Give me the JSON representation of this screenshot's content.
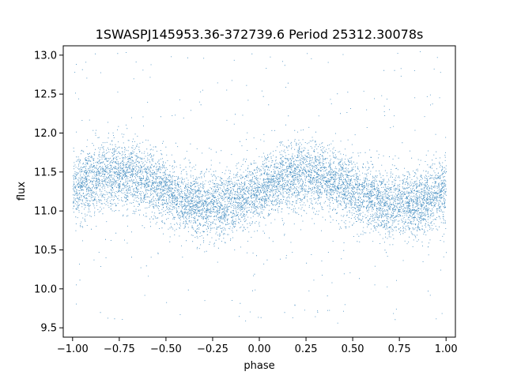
{
  "chart_data": {
    "type": "scatter",
    "title": "1SWASPJ145953.36-372739.6 Period 25312.30078s",
    "xlabel": "phase",
    "ylabel": "flux",
    "xlim": [
      -1.05,
      1.05
    ],
    "ylim": [
      9.38,
      13.12
    ],
    "xticks": [
      -1.0,
      -0.75,
      -0.5,
      -0.25,
      0.0,
      0.25,
      0.5,
      0.75,
      1.0
    ],
    "xtick_labels": [
      "−1.00",
      "−0.75",
      "−0.50",
      "−0.25",
      "0.00",
      "0.25",
      "0.50",
      "0.75",
      "1.00"
    ],
    "yticks": [
      9.5,
      10.0,
      10.5,
      11.0,
      11.5,
      12.0,
      12.5,
      13.0
    ],
    "ytick_labels": [
      "9.5",
      "10.0",
      "10.5",
      "11.0",
      "11.5",
      "12.0",
      "12.5",
      "13.0"
    ],
    "grid": false,
    "series": [
      {
        "color": "#1f77b4",
        "x_range": [
          -1.0,
          1.0
        ],
        "y_range": [
          9.55,
          13.05
        ],
        "model": {
          "mean_flux": 11.27,
          "amplitude": 0.2,
          "peak_phases": [
            -0.75,
            0.25
          ],
          "trough_phases": [
            -0.25,
            0.75
          ]
        }
      }
    ]
  }
}
